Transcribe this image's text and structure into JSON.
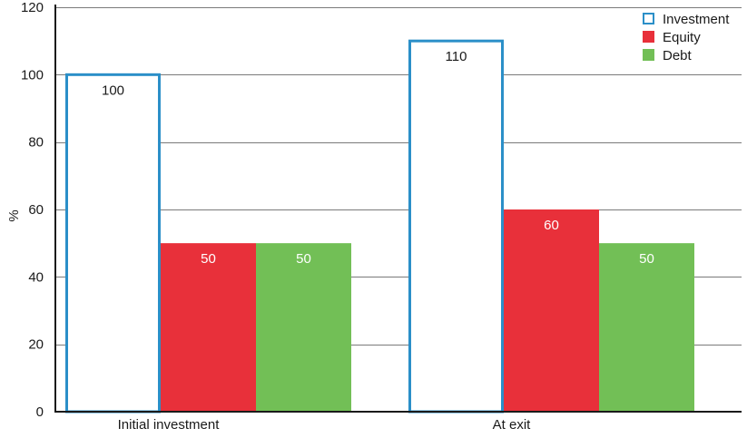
{
  "chart_data": {
    "type": "bar",
    "categories": [
      "Initial investment",
      "At exit"
    ],
    "series": [
      {
        "name": "Investment",
        "values": [
          100,
          110
        ],
        "color": "#2b8fc8",
        "style": "outline",
        "label_color": "#1a1a1a"
      },
      {
        "name": "Equity",
        "values": [
          50,
          60
        ],
        "color": "#e8303a",
        "style": "filled",
        "label_color": "#ffffff"
      },
      {
        "name": "Debt",
        "values": [
          50,
          50
        ],
        "color": "#72bf56",
        "style": "filled",
        "label_color": "#ffffff"
      }
    ],
    "ylabel": "%",
    "ylim": [
      0,
      120
    ],
    "yticks": [
      0,
      20,
      40,
      60,
      80,
      100,
      120
    ],
    "grid": true,
    "legend": "top-right"
  }
}
